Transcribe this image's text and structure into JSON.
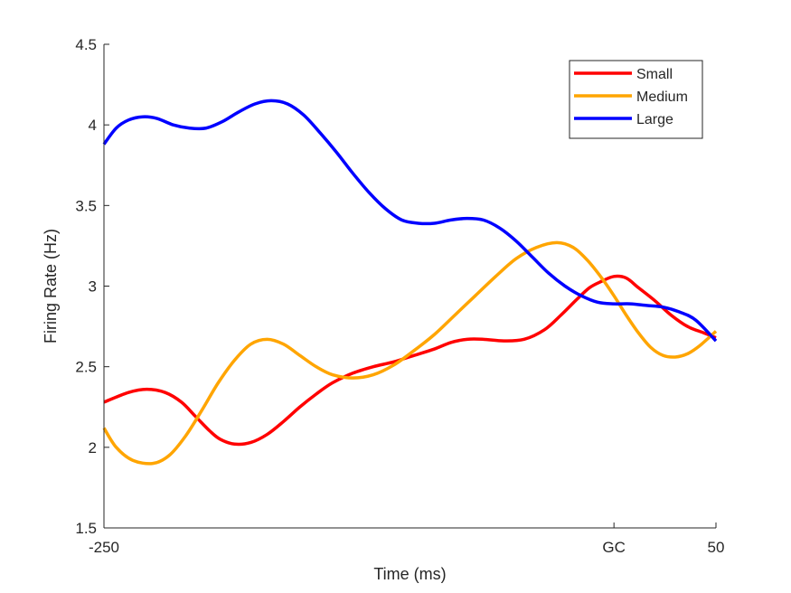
{
  "chart_data": {
    "type": "line",
    "title": "",
    "xlabel": "Time (ms)",
    "ylabel": "Firing Rate (Hz)",
    "xlim": [
      -250,
      50
    ],
    "ylim": [
      1.5,
      4.5
    ],
    "x_ticks": [
      {
        "value": -250,
        "label": "-250"
      },
      {
        "value": 0,
        "label": "GC"
      },
      {
        "value": 50,
        "label": "50"
      }
    ],
    "y_ticks": [
      {
        "value": 1.5,
        "label": "1.5"
      },
      {
        "value": 2,
        "label": "2"
      },
      {
        "value": 2.5,
        "label": "2.5"
      },
      {
        "value": 3,
        "label": "3"
      },
      {
        "value": 3.5,
        "label": "3.5"
      },
      {
        "value": 4,
        "label": "4"
      },
      {
        "value": 4.5,
        "label": "4.5"
      }
    ],
    "grid": false,
    "legend": "top-right",
    "series": [
      {
        "name": "Small",
        "color": "#ff0000",
        "x": [
          -250,
          -238,
          -229,
          -220,
          -212,
          -205,
          -198,
          -193,
          -186,
          -178,
          -170,
          -162,
          -154,
          -146,
          -138,
          -128,
          -118,
          -108,
          -98,
          -88,
          -80,
          -72,
          -64,
          -54,
          -44,
          -34,
          -26,
          -18,
          -12,
          -6,
          0,
          6,
          12,
          20,
          28,
          36,
          44,
          50
        ],
        "y": [
          2.28,
          2.34,
          2.36,
          2.34,
          2.28,
          2.19,
          2.1,
          2.05,
          2.02,
          2.03,
          2.08,
          2.16,
          2.25,
          2.33,
          2.4,
          2.46,
          2.5,
          2.53,
          2.57,
          2.61,
          2.65,
          2.67,
          2.67,
          2.66,
          2.67,
          2.73,
          2.82,
          2.92,
          2.99,
          3.03,
          3.06,
          3.05,
          2.99,
          2.91,
          2.82,
          2.75,
          2.71,
          2.68
        ]
      },
      {
        "name": "Medium",
        "color": "#ffa500",
        "x": [
          -250,
          -244,
          -236,
          -226,
          -218,
          -210,
          -202,
          -194,
          -186,
          -178,
          -170,
          -162,
          -154,
          -146,
          -138,
          -128,
          -118,
          -108,
          -98,
          -88,
          -78,
          -68,
          -58,
          -48,
          -38,
          -28,
          -20,
          -13,
          -6,
          0,
          6,
          12,
          18,
          24,
          30,
          36,
          42,
          50
        ],
        "y": [
          2.12,
          2.0,
          1.92,
          1.9,
          1.95,
          2.07,
          2.23,
          2.4,
          2.54,
          2.64,
          2.67,
          2.64,
          2.57,
          2.5,
          2.45,
          2.43,
          2.45,
          2.51,
          2.6,
          2.7,
          2.82,
          2.94,
          3.06,
          3.17,
          3.24,
          3.27,
          3.24,
          3.16,
          3.05,
          2.94,
          2.82,
          2.71,
          2.62,
          2.57,
          2.56,
          2.58,
          2.63,
          2.72
        ]
      },
      {
        "name": "Large",
        "color": "#0000ff",
        "x": [
          -250,
          -244,
          -238,
          -231,
          -224,
          -216,
          -208,
          -200,
          -192,
          -184,
          -176,
          -168,
          -160,
          -152,
          -144,
          -136,
          -128,
          -120,
          -112,
          -104,
          -96,
          -88,
          -80,
          -72,
          -64,
          -56,
          -48,
          -40,
          -32,
          -24,
          -16,
          -8,
          0,
          8,
          16,
          24,
          32,
          40,
          50
        ],
        "y": [
          3.88,
          3.98,
          4.03,
          4.05,
          4.04,
          4.0,
          3.98,
          3.98,
          4.02,
          4.08,
          4.13,
          4.15,
          4.13,
          4.06,
          3.95,
          3.83,
          3.7,
          3.58,
          3.48,
          3.41,
          3.39,
          3.39,
          3.41,
          3.42,
          3.41,
          3.36,
          3.28,
          3.18,
          3.08,
          3.0,
          2.94,
          2.9,
          2.89,
          2.89,
          2.88,
          2.87,
          2.84,
          2.79,
          2.66
        ]
      }
    ]
  }
}
